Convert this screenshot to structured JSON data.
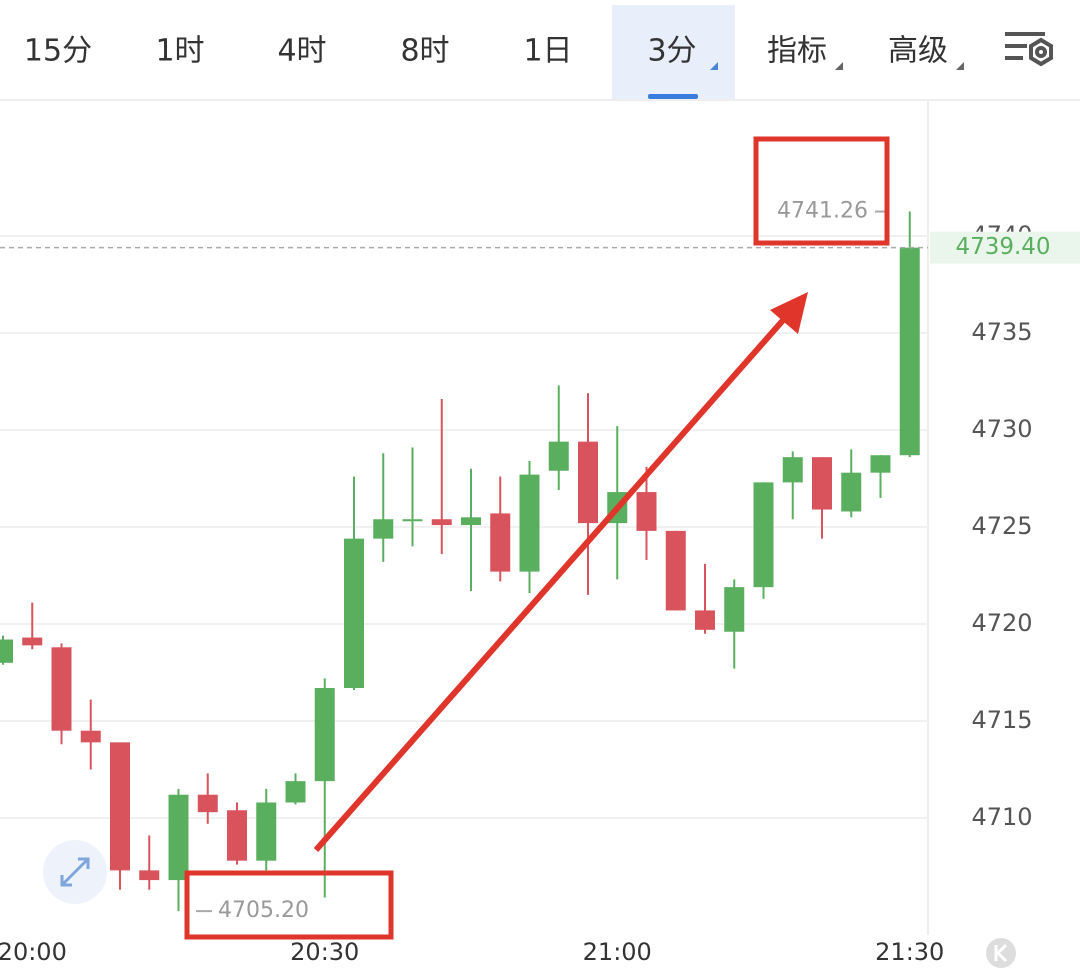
{
  "tabs": [
    "15分",
    "1时",
    "4时",
    "8时",
    "1日",
    "3分",
    "指标",
    "高级"
  ],
  "active_tab": 5,
  "chart_data": {
    "type": "candlestick",
    "categories": [
      null,
      "20:00",
      null,
      null,
      null,
      null,
      null,
      null,
      null,
      null,
      null,
      "20:30",
      null,
      null,
      null,
      null,
      null,
      null,
      null,
      null,
      null,
      "21:00",
      null,
      null,
      null,
      null,
      null,
      null,
      null,
      null,
      null,
      "21:30"
    ],
    "open": [
      4718.0,
      4719.3,
      4718.8,
      4714.5,
      4713.9,
      4707.3,
      4706.8,
      4711.2,
      4710.4,
      4707.8,
      4710.8,
      4711.9,
      4716.7,
      4724.4,
      4725.4,
      4725.4,
      4725.1,
      4725.7,
      4722.7,
      4727.9,
      4729.4,
      4725.2,
      4726.8,
      4724.8,
      4720.7,
      4719.6,
      4721.9,
      4727.3,
      4728.6,
      4725.8,
      4727.8,
      4728.7
    ],
    "high": [
      4719.4,
      4721.1,
      4719.0,
      4716.1,
      4713.9,
      4709.1,
      4711.5,
      4712.3,
      4710.8,
      4711.5,
      4712.3,
      4717.2,
      4727.6,
      4728.8,
      4729.1,
      4731.6,
      4728.0,
      4727.6,
      4728.4,
      4732.3,
      4731.9,
      4730.2,
      4728.1,
      4724.8,
      4723.1,
      4722.3,
      4727.3,
      4728.9,
      4728.6,
      4729.0,
      4728.7,
      4741.26
    ],
    "low": [
      4717.9,
      4718.7,
      4713.8,
      4712.5,
      4706.3,
      4706.3,
      4705.2,
      4709.7,
      4707.6,
      4707.3,
      4710.7,
      4705.9,
      4716.6,
      4723.2,
      4724.0,
      4723.6,
      4721.7,
      4722.2,
      4721.6,
      4726.9,
      4721.5,
      4722.3,
      4723.3,
      4720.7,
      4719.5,
      4717.7,
      4721.3,
      4725.4,
      4724.4,
      4725.5,
      4726.5,
      4728.6
    ],
    "close": [
      4719.2,
      4718.9,
      4714.5,
      4713.9,
      4707.3,
      4706.8,
      4711.2,
      4710.3,
      4707.8,
      4710.8,
      4711.9,
      4716.7,
      4724.4,
      4725.4,
      4725.4,
      4725.1,
      4725.5,
      4722.7,
      4727.7,
      4729.4,
      4725.2,
      4726.8,
      4724.8,
      4720.7,
      4719.7,
      4721.9,
      4727.3,
      4728.6,
      4725.9,
      4727.8,
      4728.7,
      4739.4
    ],
    "up_color": "#5aaf5f",
    "down_color": "#d9535d",
    "ylim": [
      4704,
      4747
    ],
    "yticks": [
      4710,
      4715,
      4720,
      4725,
      4730,
      4735,
      4740
    ],
    "grid": true,
    "high_mark": 4741.26,
    "low_mark": {
      "value": 4705.2,
      "label": "4705.20"
    },
    "last_price": {
      "value": 4739.4,
      "label": "4739.40"
    }
  }
}
